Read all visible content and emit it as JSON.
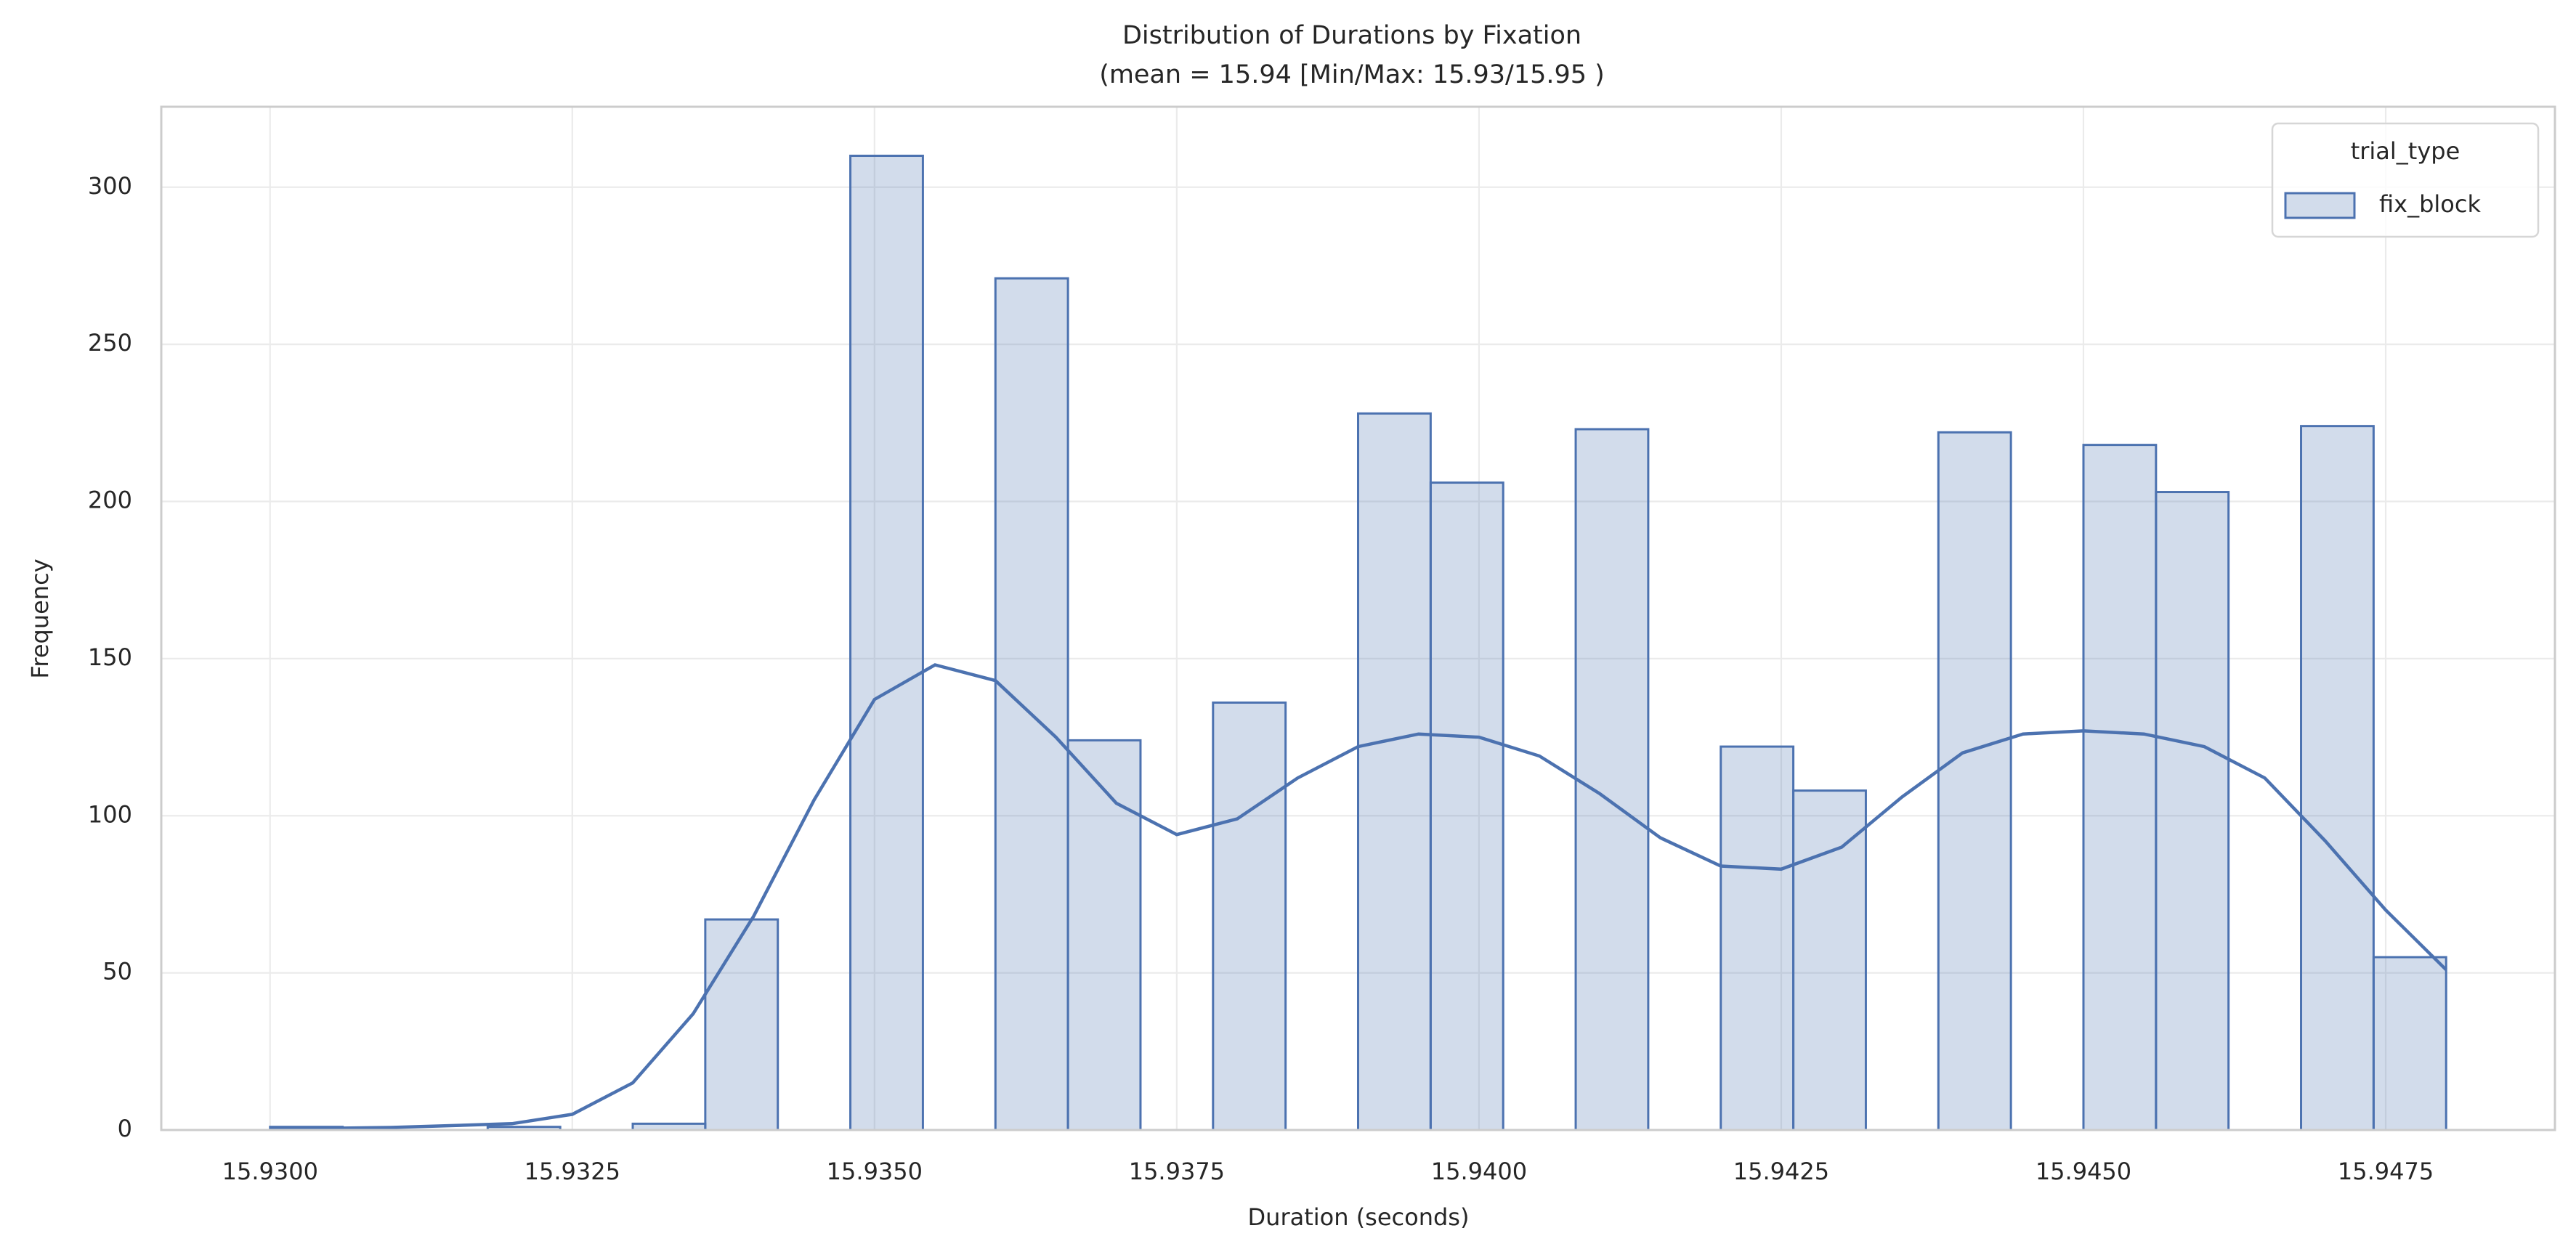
{
  "chart_data": {
    "type": "histogram",
    "title": "Distribution of Durations by Fixation",
    "subtitle": "(mean = 15.94 [Min/Max: 15.93/15.95 )",
    "x_label": "Duration (seconds)",
    "y_label": "Frequency",
    "legend_title": "trial_type",
    "legend_position": "upper right",
    "series": [
      {
        "name": "fix_block",
        "color": "#4c72b0"
      }
    ],
    "bins": [
      15.93,
      15.9306,
      15.9312,
      15.9318,
      15.9324,
      15.933,
      15.9336,
      15.9342,
      15.9348,
      15.9354,
      15.936,
      15.9366,
      15.9372,
      15.9378,
      15.9384,
      15.939,
      15.9396,
      15.9402,
      15.9408,
      15.9414,
      15.942,
      15.9426,
      15.9432,
      15.9438,
      15.9444,
      15.945,
      15.9456,
      15.9462,
      15.9468,
      15.9474,
      15.948
    ],
    "counts": [
      1,
      0,
      0,
      1,
      0,
      2,
      67,
      0,
      310,
      0,
      271,
      124,
      0,
      136,
      0,
      228,
      206,
      0,
      223,
      0,
      122,
      108,
      0,
      222,
      0,
      218,
      203,
      0,
      224,
      55
    ],
    "kde": {
      "x": [
        15.93,
        15.931,
        15.932,
        15.9325,
        15.933,
        15.9335,
        15.934,
        15.9345,
        15.935,
        15.9355,
        15.936,
        15.9365,
        15.937,
        15.9375,
        15.938,
        15.9385,
        15.939,
        15.9395,
        15.94,
        15.9405,
        15.941,
        15.9415,
        15.942,
        15.9425,
        15.943,
        15.9435,
        15.944,
        15.9445,
        15.945,
        15.9455,
        15.946,
        15.9465,
        15.947,
        15.9475,
        15.948
      ],
      "values": [
        0.3,
        0.8,
        2,
        5,
        15,
        37,
        68,
        105,
        137,
        148,
        143,
        125,
        104,
        94,
        99,
        112,
        122,
        126,
        125,
        119,
        107,
        93,
        84,
        83,
        90,
        106,
        120,
        126,
        127,
        126,
        122,
        112,
        92,
        70,
        51
      ]
    },
    "xlim": [
      15.9291,
      15.9489
    ],
    "ylim": [
      0,
      325.6
    ],
    "xticks": [
      {
        "value": 15.93,
        "label": "15.9300"
      },
      {
        "value": 15.9325,
        "label": "15.9325"
      },
      {
        "value": 15.935,
        "label": "15.9350"
      },
      {
        "value": 15.9375,
        "label": "15.9375"
      },
      {
        "value": 15.94,
        "label": "15.9400"
      },
      {
        "value": 15.9425,
        "label": "15.9425"
      },
      {
        "value": 15.945,
        "label": "15.9450"
      },
      {
        "value": 15.9475,
        "label": "15.9475"
      }
    ],
    "yticks": [
      0,
      50,
      100,
      150,
      200,
      250,
      300
    ],
    "grid": true
  }
}
